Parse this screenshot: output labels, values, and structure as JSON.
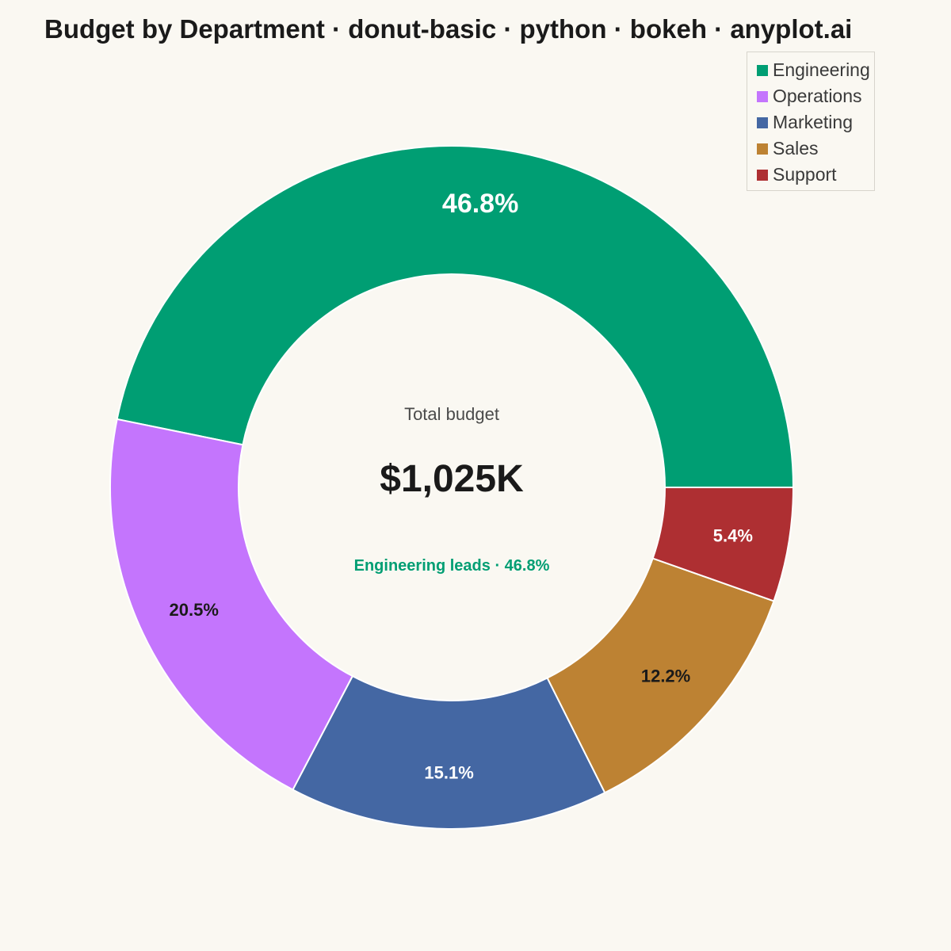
{
  "title": "Budget by Department · donut-basic · python · bokeh · anyplot.ai",
  "chart_data": {
    "type": "pie",
    "variant": "donut",
    "title": "Budget by Department · donut-basic · python · bokeh · anyplot.ai",
    "categories": [
      "Engineering",
      "Operations",
      "Marketing",
      "Sales",
      "Support"
    ],
    "values": [
      46.8,
      20.5,
      15.1,
      12.2,
      5.4
    ],
    "value_labels": [
      "46.8%",
      "20.5%",
      "15.1%",
      "12.2%",
      "5.4%"
    ],
    "colors": [
      "#009E73",
      "#C475FD",
      "#4467A3",
      "#BD8233",
      "#AE2F32"
    ],
    "label_colors": [
      "#FFFFFF",
      "#1A1A1A",
      "#FFFFFF",
      "#1A1A1A",
      "#FFFFFF"
    ],
    "start": "3 o'clock, counterclockwise",
    "legend": "top-right",
    "center": {
      "caption": "Total budget",
      "total": "$1,025K",
      "highlight": "Engineering leads · 46.8%",
      "highlight_color": "#009E73"
    }
  }
}
